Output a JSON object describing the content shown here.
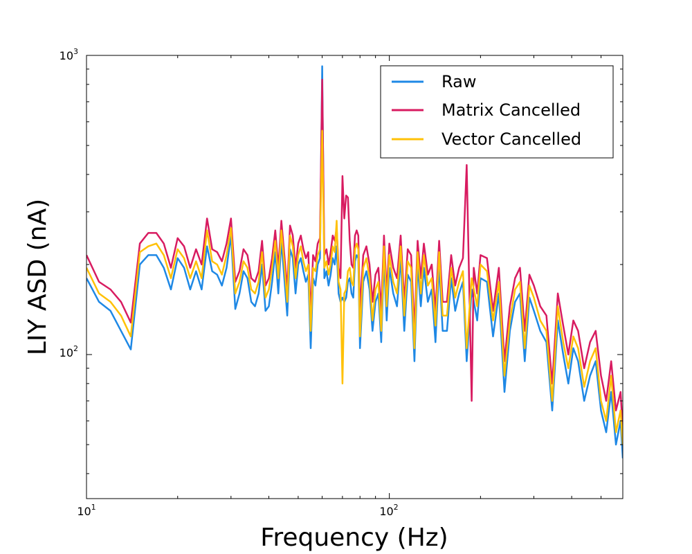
{
  "chart_data": {
    "type": "line",
    "title": "",
    "xlabel": "Frequency (Hz)",
    "ylabel": "LIY ASD (nA)",
    "xscale": "log",
    "yscale": "log",
    "xlim": [
      10,
      590
    ],
    "ylim": [
      33,
      1000
    ],
    "x_ticks": [
      {
        "base": "10",
        "exp": "1"
      },
      {
        "base": "10",
        "exp": "2"
      }
    ],
    "y_ticks": [
      {
        "base": "10",
        "exp": "2"
      },
      {
        "base": "10",
        "exp": "3"
      }
    ],
    "grid": false,
    "legend_position": "top-right",
    "series": [
      {
        "name": "Raw",
        "color": "#1e88e5",
        "x": [
          10,
          11,
          12,
          13,
          14,
          15,
          16,
          17,
          18,
          19,
          20,
          21,
          22,
          23,
          24,
          25,
          26,
          27,
          28,
          29,
          30,
          31,
          32,
          33,
          34,
          35,
          36,
          37,
          38,
          39,
          40,
          41,
          42,
          43,
          44,
          45,
          46,
          47,
          48,
          49,
          50,
          51,
          52,
          53,
          54,
          55,
          56,
          57,
          58,
          59,
          60,
          61,
          62,
          63,
          64,
          65,
          66,
          67,
          68,
          69,
          70,
          71,
          72,
          73,
          74,
          75,
          76,
          77,
          78,
          79,
          80,
          82,
          84,
          86,
          88,
          90,
          92,
          94,
          96,
          98,
          100,
          103,
          106,
          109,
          112,
          115,
          118,
          121,
          124,
          127,
          130,
          134,
          138,
          142,
          146,
          150,
          155,
          160,
          165,
          170,
          175,
          180,
          187,
          195,
          200,
          210,
          220,
          230,
          240,
          250,
          260,
          270,
          280,
          290,
          300,
          315,
          330,
          345,
          360,
          375,
          390,
          405,
          420,
          440,
          460,
          480,
          500,
          520,
          540,
          560,
          580,
          590
        ],
        "y": [
          180,
          150,
          140,
          120,
          104,
          200,
          215,
          215,
          195,
          165,
          210,
          195,
          165,
          190,
          165,
          230,
          190,
          185,
          170,
          195,
          250,
          142,
          160,
          190,
          180,
          150,
          145,
          160,
          200,
          140,
          145,
          175,
          220,
          160,
          240,
          180,
          135,
          225,
          210,
          160,
          200,
          210,
          190,
          175,
          185,
          105,
          180,
          170,
          200,
          210,
          920,
          180,
          190,
          170,
          185,
          210,
          200,
          230,
          160,
          150,
          155,
          150,
          155,
          175,
          180,
          160,
          155,
          205,
          215,
          210,
          105,
          175,
          190,
          165,
          120,
          150,
          160,
          110,
          210,
          130,
          195,
          160,
          145,
          210,
          120,
          185,
          175,
          95,
          200,
          145,
          195,
          150,
          165,
          110,
          200,
          120,
          120,
          180,
          140,
          160,
          175,
          95,
          165,
          130,
          180,
          175,
          115,
          160,
          75,
          120,
          150,
          160,
          95,
          155,
          140,
          120,
          110,
          65,
          130,
          100,
          80,
          105,
          95,
          70,
          85,
          95,
          65,
          55,
          75,
          50,
          60,
          45
        ]
      },
      {
        "name": "Matrix Cancelled",
        "color": "#d81b60",
        "x": [
          10,
          11,
          12,
          13,
          14,
          15,
          16,
          17,
          18,
          19,
          20,
          21,
          22,
          23,
          24,
          25,
          26,
          27,
          28,
          29,
          30,
          31,
          32,
          33,
          34,
          35,
          36,
          37,
          38,
          39,
          40,
          41,
          42,
          43,
          44,
          45,
          46,
          47,
          48,
          49,
          50,
          51,
          52,
          53,
          54,
          55,
          56,
          57,
          58,
          59,
          60,
          61,
          62,
          63,
          64,
          65,
          66,
          67,
          68,
          69,
          70,
          71,
          72,
          73,
          74,
          75,
          76,
          77,
          78,
          79,
          80,
          82,
          84,
          86,
          88,
          90,
          92,
          94,
          96,
          98,
          100,
          103,
          106,
          109,
          112,
          115,
          118,
          121,
          124,
          127,
          130,
          134,
          138,
          142,
          146,
          150,
          155,
          160,
          165,
          170,
          175,
          180,
          187,
          190,
          195,
          200,
          210,
          220,
          230,
          240,
          250,
          260,
          270,
          280,
          290,
          300,
          315,
          330,
          345,
          360,
          375,
          390,
          405,
          420,
          440,
          460,
          480,
          500,
          520,
          540,
          560,
          580,
          590
        ],
        "y": [
          215,
          175,
          165,
          150,
          128,
          235,
          255,
          255,
          235,
          195,
          245,
          230,
          195,
          225,
          200,
          285,
          225,
          220,
          205,
          235,
          285,
          175,
          190,
          225,
          215,
          180,
          175,
          190,
          240,
          170,
          180,
          210,
          260,
          195,
          280,
          215,
          165,
          270,
          250,
          195,
          235,
          250,
          225,
          210,
          220,
          135,
          215,
          205,
          235,
          245,
          830,
          215,
          225,
          200,
          220,
          250,
          240,
          265,
          195,
          180,
          395,
          285,
          340,
          335,
          240,
          200,
          195,
          250,
          260,
          250,
          140,
          215,
          230,
          200,
          150,
          185,
          195,
          140,
          250,
          160,
          235,
          195,
          180,
          250,
          150,
          225,
          215,
          120,
          240,
          180,
          235,
          185,
          200,
          140,
          240,
          150,
          150,
          215,
          170,
          195,
          210,
          430,
          70,
          195,
          160,
          215,
          210,
          140,
          195,
          95,
          145,
          180,
          195,
          120,
          185,
          170,
          145,
          135,
          80,
          160,
          125,
          100,
          130,
          120,
          90,
          110,
          120,
          85,
          70,
          95,
          65,
          75,
          55
        ]
      },
      {
        "name": "Vector Cancelled",
        "color": "#ffc107",
        "x": [
          10,
          11,
          12,
          13,
          14,
          15,
          16,
          17,
          18,
          19,
          20,
          21,
          22,
          23,
          24,
          25,
          26,
          27,
          28,
          29,
          30,
          31,
          32,
          33,
          34,
          35,
          36,
          37,
          38,
          39,
          40,
          41,
          42,
          43,
          44,
          45,
          46,
          47,
          48,
          49,
          50,
          51,
          52,
          53,
          54,
          55,
          56,
          57,
          58,
          59,
          60,
          61,
          62,
          63,
          64,
          65,
          66,
          67,
          68,
          69,
          70,
          71,
          72,
          73,
          74,
          75,
          76,
          77,
          78,
          79,
          80,
          82,
          84,
          86,
          88,
          90,
          92,
          94,
          96,
          98,
          100,
          103,
          106,
          109,
          112,
          115,
          118,
          121,
          124,
          127,
          130,
          134,
          138,
          142,
          146,
          150,
          155,
          160,
          165,
          170,
          175,
          180,
          187,
          195,
          200,
          210,
          220,
          230,
          240,
          250,
          260,
          270,
          280,
          290,
          300,
          315,
          330,
          345,
          360,
          375,
          390,
          405,
          420,
          440,
          460,
          480,
          500,
          520,
          540,
          560,
          580,
          590
        ],
        "y": [
          195,
          160,
          150,
          135,
          115,
          220,
          230,
          235,
          215,
          180,
          225,
          210,
          180,
          205,
          180,
          260,
          205,
          200,
          185,
          215,
          265,
          160,
          175,
          205,
          195,
          165,
          160,
          175,
          220,
          155,
          165,
          195,
          240,
          180,
          260,
          200,
          150,
          250,
          230,
          180,
          215,
          230,
          205,
          190,
          200,
          120,
          195,
          190,
          215,
          225,
          560,
          195,
          205,
          185,
          200,
          230,
          220,
          280,
          175,
          165,
          80,
          160,
          165,
          190,
          195,
          175,
          170,
          225,
          235,
          225,
          115,
          195,
          210,
          180,
          130,
          165,
          175,
          120,
          230,
          145,
          215,
          175,
          160,
          230,
          135,
          205,
          195,
          105,
          220,
          160,
          215,
          170,
          180,
          125,
          220,
          135,
          135,
          195,
          155,
          175,
          190,
          105,
          180,
          145,
          200,
          190,
          130,
          175,
          85,
          130,
          165,
          175,
          105,
          170,
          155,
          130,
          120,
          70,
          145,
          110,
          90,
          115,
          105,
          78,
          95,
          105,
          70,
          60,
          85,
          55,
          65,
          50
        ]
      }
    ]
  }
}
